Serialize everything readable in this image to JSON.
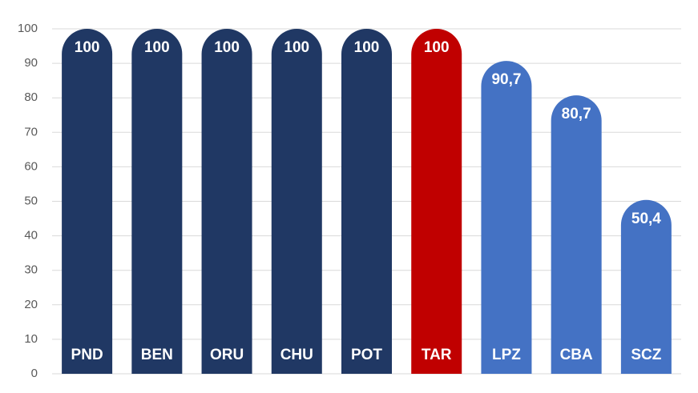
{
  "chart_data": {
    "type": "bar",
    "categories": [
      "PND",
      "BEN",
      "ORU",
      "CHU",
      "POT",
      "TAR",
      "LPZ",
      "CBA",
      "SCZ"
    ],
    "values": [
      100,
      100,
      100,
      100,
      100,
      100,
      90.7,
      80.7,
      50.4
    ],
    "value_labels": [
      "100",
      "100",
      "100",
      "100",
      "100",
      "100",
      "90,7",
      "80,7",
      "50,4"
    ],
    "colors": [
      "#203864",
      "#203864",
      "#203864",
      "#203864",
      "#203864",
      "#c00000",
      "#4472c4",
      "#4472c4",
      "#4472c4"
    ],
    "ylim": [
      0,
      100
    ],
    "yticks": [
      0,
      10,
      20,
      30,
      40,
      50,
      60,
      70,
      80,
      90,
      100
    ],
    "grid": true
  }
}
